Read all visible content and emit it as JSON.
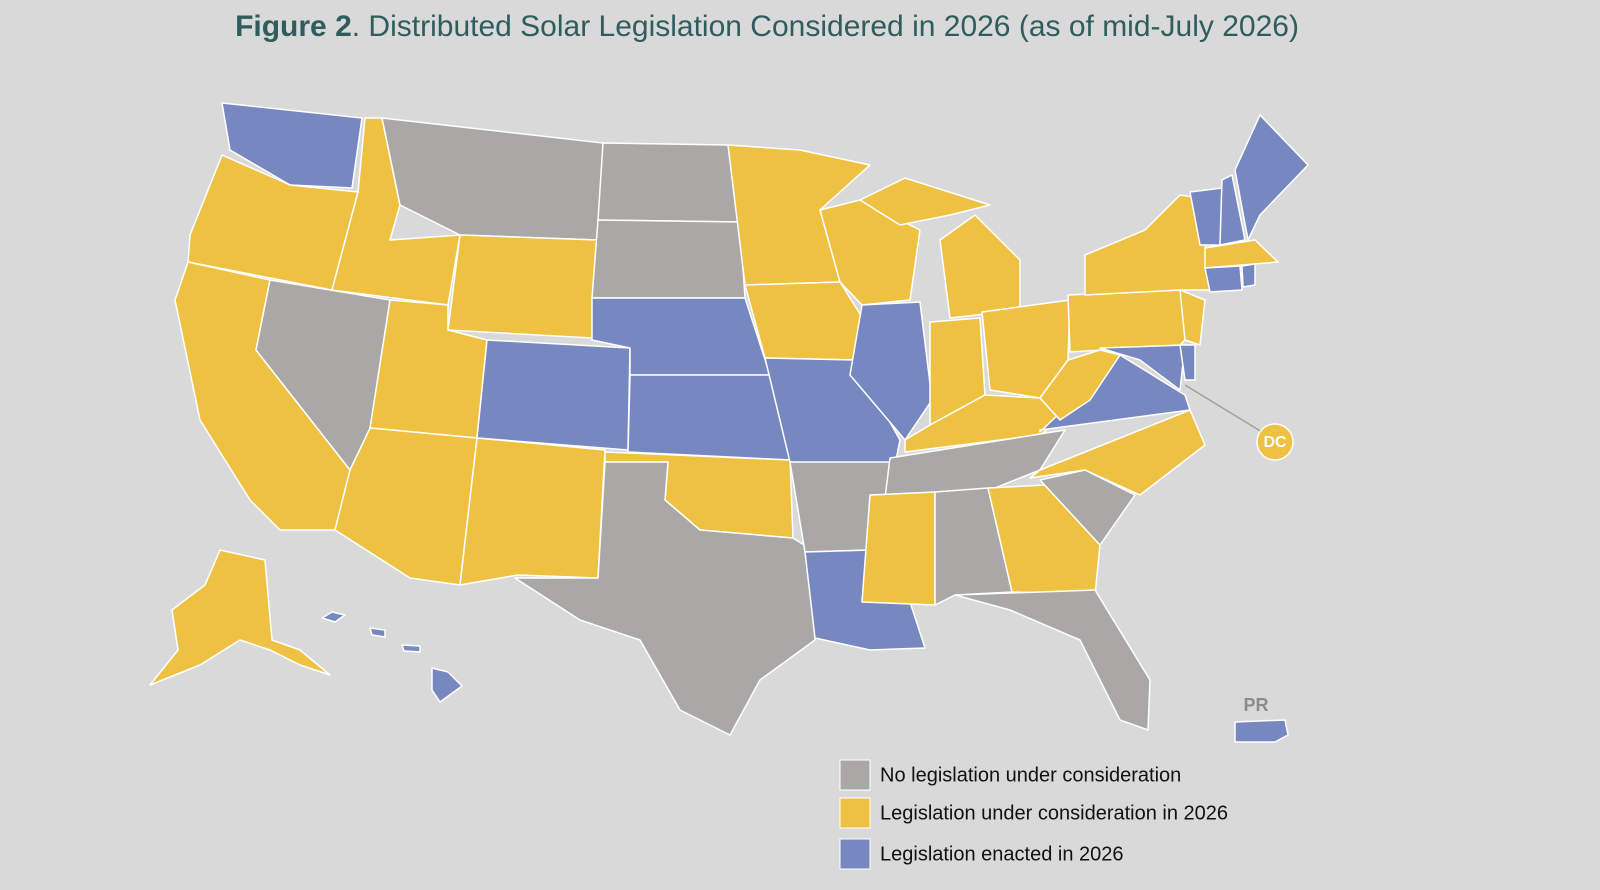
{
  "title": {
    "label": "Figure 2",
    "text": ". Distributed Solar Legislation Considered in 2026 (as of mid-July 2026)"
  },
  "legend": [
    {
      "label": "No legislation under consideration",
      "color": "#a9a8a6"
    },
    {
      "label": "Legislation under consideration in 2026",
      "color": "#efc142"
    },
    {
      "label": "Legislation enacted in 2026",
      "color": "#7788c0"
    }
  ],
  "regions": [
    2,
    1,
    1,
    1,
    0,
    0,
    1,
    1,
    1,
    2,
    1,
    0,
    0,
    2,
    2,
    1,
    0,
    1,
    1,
    2,
    0,
    2,
    1,
    2,
    1,
    1,
    1,
    1,
    0,
    1,
    0,
    1,
    0,
    0,
    1,
    2,
    1,
    1,
    1,
    1,
    2,
    2,
    2,
    2,
    2,
    1,
    2,
    2,
    1,
    2,
    2,
    1
  ],
  "markers": {
    "dc": "DC",
    "pr": "PR"
  }
}
